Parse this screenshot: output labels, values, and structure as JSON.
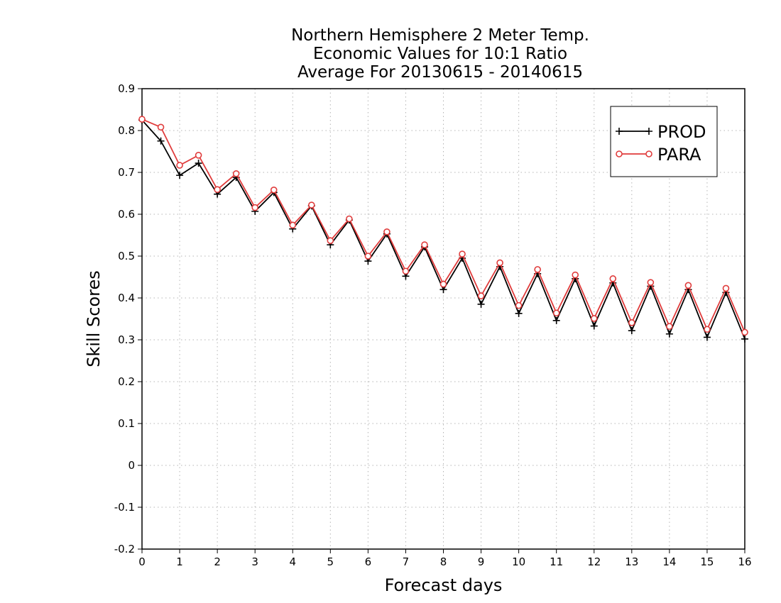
{
  "chart_data": {
    "type": "line",
    "title_lines": [
      "Northern Hemisphere 2 Meter Temp.",
      "Economic Values for 10:1 Ratio",
      "Average For 20130615 - 20140615"
    ],
    "xlabel": "Forecast days",
    "ylabel": "Skill Scores",
    "xlim": [
      0,
      16
    ],
    "ylim": [
      -0.2,
      0.9
    ],
    "x_ticks": [
      0,
      1,
      2,
      3,
      4,
      5,
      6,
      7,
      8,
      9,
      10,
      11,
      12,
      13,
      14,
      15,
      16
    ],
    "x_tick_labels": [
      "0",
      "1",
      "2",
      "3",
      "4",
      "5",
      "6",
      "7",
      "8",
      "9",
      "10",
      "11",
      "12",
      "13",
      "14",
      "15",
      "16"
    ],
    "y_ticks": [
      -0.2,
      -0.1,
      0,
      0.1,
      0.2,
      0.3,
      0.4,
      0.5,
      0.6,
      0.7,
      0.8,
      0.9
    ],
    "y_tick_labels": [
      "-0.2",
      "-0.1",
      "0",
      "0.1",
      "0.2",
      "0.3",
      "0.4",
      "0.5",
      "0.6",
      "0.7",
      "0.8",
      "0.9"
    ],
    "grid": true,
    "legend_position": "top-right",
    "x": [
      0,
      0.5,
      1,
      1.5,
      2,
      2.5,
      3,
      3.5,
      4,
      4.5,
      5,
      5.5,
      6,
      6.5,
      7,
      7.5,
      8,
      8.5,
      9,
      9.5,
      10,
      10.5,
      11,
      11.5,
      12,
      12.5,
      13,
      13.5,
      14,
      14.5,
      15,
      15.5,
      16
    ],
    "series": [
      {
        "name": "PROD",
        "color": "#000000",
        "marker": "plus",
        "values": [
          0.825,
          0.775,
          0.693,
          0.722,
          0.648,
          0.688,
          0.607,
          0.652,
          0.565,
          0.62,
          0.527,
          0.586,
          0.488,
          0.553,
          0.452,
          0.522,
          0.42,
          0.495,
          0.385,
          0.475,
          0.363,
          0.458,
          0.346,
          0.446,
          0.333,
          0.436,
          0.322,
          0.428,
          0.314,
          0.42,
          0.306,
          0.413,
          0.302
        ]
      },
      {
        "name": "PARA",
        "color": "#e03c3c",
        "marker": "circle",
        "values": [
          0.827,
          0.808,
          0.717,
          0.741,
          0.659,
          0.697,
          0.616,
          0.658,
          0.574,
          0.622,
          0.537,
          0.589,
          0.5,
          0.558,
          0.464,
          0.527,
          0.433,
          0.505,
          0.405,
          0.484,
          0.382,
          0.468,
          0.364,
          0.455,
          0.351,
          0.446,
          0.341,
          0.437,
          0.332,
          0.43,
          0.325,
          0.423,
          0.318
        ]
      }
    ]
  }
}
